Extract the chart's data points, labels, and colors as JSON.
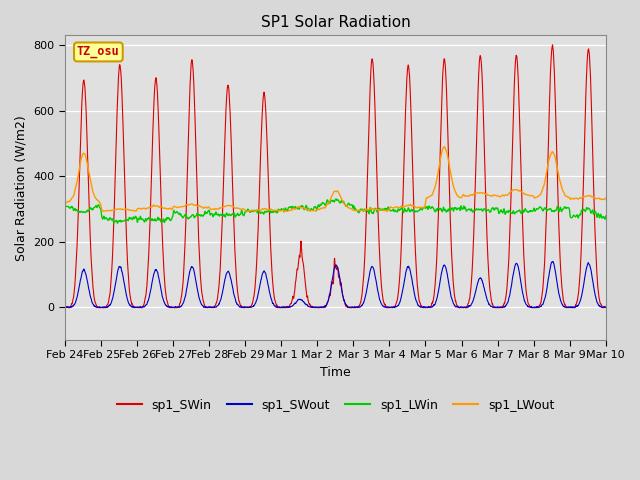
{
  "title": "SP1 Solar Radiation",
  "xlabel": "Time",
  "ylabel": "Solar Radiation (W/m2)",
  "ylim": [
    -100,
    830
  ],
  "colors": {
    "SWin": "#dd0000",
    "SWout": "#0000cc",
    "LWin": "#00cc00",
    "LWout": "#ff9900"
  },
  "legend_labels": [
    "sp1_SWin",
    "sp1_SWout",
    "sp1_LWin",
    "sp1_LWout"
  ],
  "tick_labels": [
    "Feb 24",
    "Feb 25",
    "Feb 26",
    "Feb 27",
    "Feb 28",
    "Feb 29",
    "Mar 1",
    "Mar 2",
    "Mar 3",
    "Mar 4",
    "Mar 5",
    "Mar 6",
    "Mar 7",
    "Mar 8",
    "Mar 9",
    "Mar 10"
  ],
  "tick_positions": [
    0,
    1,
    2,
    3,
    4,
    5,
    6,
    7,
    8,
    9,
    10,
    11,
    12,
    13,
    14,
    15
  ],
  "total_days": 15,
  "SWin_peaks": [
    695,
    740,
    700,
    755,
    680,
    655,
    210,
    165,
    760,
    740,
    760,
    770,
    770,
    800,
    790,
    0
  ],
  "SWout_peaks": [
    115,
    125,
    115,
    125,
    110,
    110,
    25,
    130,
    125,
    125,
    130,
    90,
    135,
    140,
    135,
    0
  ],
  "LWin_day": [
    290,
    260,
    265,
    275,
    280,
    290,
    305,
    325,
    295,
    295,
    295,
    295,
    290,
    295,
    300,
    270
  ],
  "LWout_day": [
    470,
    300,
    310,
    315,
    310,
    300,
    305,
    355,
    300,
    310,
    490,
    350,
    360,
    475,
    340,
    325
  ],
  "LWin_night": [
    310,
    275,
    270,
    290,
    285,
    295,
    300,
    310,
    300,
    300,
    305,
    300,
    295,
    305,
    270,
    270
  ],
  "LWout_night": [
    320,
    295,
    300,
    305,
    300,
    295,
    295,
    300,
    295,
    305,
    335,
    340,
    340,
    335,
    330,
    325
  ],
  "cloudy_days": [
    6,
    7
  ],
  "title_fontsize": 11,
  "axis_fontsize": 9,
  "tick_fontsize": 8,
  "legend_fontsize": 9,
  "fig_bg": "#d8d8d8",
  "plot_bg": "#e0e0e0"
}
